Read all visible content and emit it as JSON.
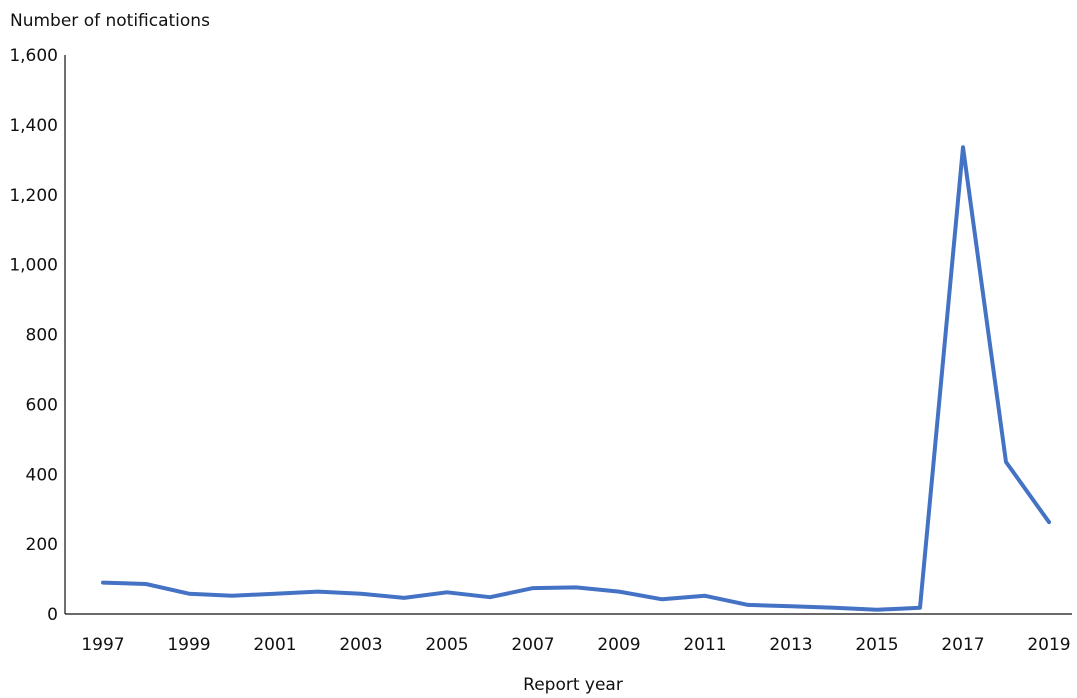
{
  "chart_data": {
    "type": "line",
    "title": "",
    "ylabel": "Number of notifications",
    "xlabel": "Report year",
    "ylim": [
      0,
      1600
    ],
    "y_ticks": [
      0,
      200,
      400,
      600,
      800,
      1000,
      1200,
      1400,
      1600
    ],
    "y_tick_labels": [
      "0",
      "200",
      "400",
      "600",
      "800",
      "1,000",
      "1,200",
      "1,400",
      "1,600"
    ],
    "xlim": [
      1997,
      2019
    ],
    "x_tick_labels": [
      "1997",
      "1999",
      "2001",
      "2003",
      "2005",
      "2007",
      "2009",
      "2011",
      "2013",
      "2015",
      "2017",
      "2019"
    ],
    "grid": false,
    "legend": "none",
    "series": [
      {
        "color": "#4472C4",
        "x": [
          1997,
          1998,
          1999,
          2000,
          2001,
          2002,
          2003,
          2004,
          2005,
          2006,
          2007,
          2008,
          2009,
          2010,
          2011,
          2012,
          2013,
          2014,
          2015,
          2016,
          2017,
          2018,
          2019
        ],
        "values": [
          90,
          86,
          58,
          52,
          58,
          64,
          58,
          46,
          62,
          48,
          74,
          76,
          64,
          42,
          52,
          26,
          22,
          18,
          12,
          18,
          1336,
          435,
          263
        ]
      }
    ]
  }
}
